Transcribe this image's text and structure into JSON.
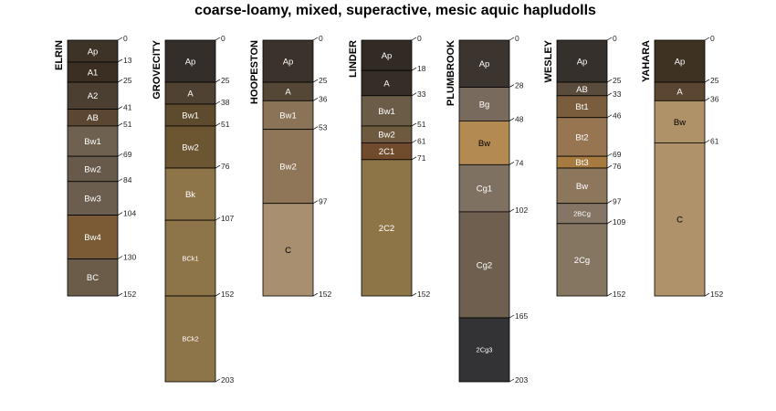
{
  "chart_data": {
    "type": "soil-profile",
    "title": "coarse-loamy, mixed, superactive, mesic aquic hapludolls",
    "depth_range": [
      0,
      203
    ],
    "profiles": [
      {
        "name": "ELRIN",
        "horizons": [
          {
            "name": "Ap",
            "top": 0,
            "bottom": 13,
            "color": "#3d3327",
            "text": "#ffffff"
          },
          {
            "name": "A1",
            "top": 13,
            "bottom": 25,
            "color": "#3a2f22",
            "text": "#ffffff"
          },
          {
            "name": "A2",
            "top": 25,
            "bottom": 41,
            "color": "#4b3f31",
            "text": "#ffffff"
          },
          {
            "name": "AB",
            "top": 41,
            "bottom": 51,
            "color": "#5a4631",
            "text": "#ffffff"
          },
          {
            "name": "Bw1",
            "top": 51,
            "bottom": 69,
            "color": "#6e6150",
            "text": "#ffffff"
          },
          {
            "name": "Bw2",
            "top": 69,
            "bottom": 84,
            "color": "#675a4b",
            "text": "#ffffff"
          },
          {
            "name": "Bw3",
            "top": 84,
            "bottom": 104,
            "color": "#6b5e4f",
            "text": "#ffffff"
          },
          {
            "name": "Bw4",
            "top": 104,
            "bottom": 130,
            "color": "#7a5b36",
            "text": "#ffffff"
          },
          {
            "name": "BC",
            "top": 130,
            "bottom": 152,
            "color": "#6b5c4a",
            "text": "#ffffff"
          }
        ],
        "depth_labels": [
          0,
          13,
          25,
          41,
          51,
          69,
          84,
          104,
          130,
          152
        ]
      },
      {
        "name": "GROVECITY",
        "horizons": [
          {
            "name": "Ap",
            "top": 0,
            "bottom": 25,
            "color": "#342e2a",
            "text": "#ffffff"
          },
          {
            "name": "A",
            "top": 25,
            "bottom": 38,
            "color": "#4f4232",
            "text": "#ffffff"
          },
          {
            "name": "Bw1",
            "top": 38,
            "bottom": 51,
            "color": "#5e4a2c",
            "text": "#ffffff"
          },
          {
            "name": "Bw2",
            "top": 51,
            "bottom": 76,
            "color": "#6c5631",
            "text": "#ffffff"
          },
          {
            "name": "Bk",
            "top": 76,
            "bottom": 107,
            "color": "#8e7449",
            "text": "#ffffff"
          },
          {
            "name": "BCk1",
            "top": 107,
            "bottom": 152,
            "color": "#8e7449",
            "text": "#ffffff"
          },
          {
            "name": "BCk2",
            "top": 152,
            "bottom": 203,
            "color": "#8e7449",
            "text": "#ffffff"
          }
        ],
        "depth_labels": [
          0,
          25,
          38,
          51,
          76,
          107,
          152,
          203
        ]
      },
      {
        "name": "HOOPESTON",
        "horizons": [
          {
            "name": "Ap",
            "top": 0,
            "bottom": 25,
            "color": "#3a322b",
            "text": "#ffffff"
          },
          {
            "name": "A",
            "top": 25,
            "bottom": 36,
            "color": "#554736",
            "text": "#ffffff"
          },
          {
            "name": "Bw1",
            "top": 36,
            "bottom": 53,
            "color": "#8a7356",
            "text": "#ffffff"
          },
          {
            "name": "Bw2",
            "top": 53,
            "bottom": 97,
            "color": "#8f7659",
            "text": "#ffffff"
          },
          {
            "name": "C",
            "top": 97,
            "bottom": 152,
            "color": "#a88f6f",
            "text": "#000000"
          }
        ],
        "depth_labels": [
          0,
          25,
          36,
          53,
          97,
          152
        ]
      },
      {
        "name": "LINDER",
        "horizons": [
          {
            "name": "Ap",
            "top": 0,
            "bottom": 18,
            "color": "#322b25",
            "text": "#ffffff"
          },
          {
            "name": "A",
            "top": 18,
            "bottom": 33,
            "color": "#352d26",
            "text": "#ffffff"
          },
          {
            "name": "Bw1",
            "top": 33,
            "bottom": 51,
            "color": "#6b5c48",
            "text": "#ffffff"
          },
          {
            "name": "Bw2",
            "top": 51,
            "bottom": 61,
            "color": "#6e5a3f",
            "text": "#ffffff"
          },
          {
            "name": "2C1",
            "top": 61,
            "bottom": 71,
            "color": "#704c2c",
            "text": "#ffffff"
          },
          {
            "name": "2C2",
            "top": 71,
            "bottom": 152,
            "color": "#8e7548",
            "text": "#ffffff"
          }
        ],
        "depth_labels": [
          0,
          18,
          33,
          51,
          61,
          71,
          152
        ]
      },
      {
        "name": "PLUMBROOK",
        "horizons": [
          {
            "name": "Ap",
            "top": 0,
            "bottom": 28,
            "color": "#3b342f",
            "text": "#ffffff"
          },
          {
            "name": "Bg",
            "top": 28,
            "bottom": 48,
            "color": "#786b5d",
            "text": "#ffffff"
          },
          {
            "name": "Bw",
            "top": 48,
            "bottom": 74,
            "color": "#b38b52",
            "text": "#000000"
          },
          {
            "name": "Cg1",
            "top": 74,
            "bottom": 102,
            "color": "#7f7161",
            "text": "#ffffff"
          },
          {
            "name": "Cg2",
            "top": 102,
            "bottom": 165,
            "color": "#6e5f4e",
            "text": "#ffffff"
          },
          {
            "name": "2Cg3",
            "top": 165,
            "bottom": 203,
            "color": "#333335",
            "text": "#ffffff"
          }
        ],
        "depth_labels": [
          0,
          28,
          48,
          74,
          102,
          165,
          203
        ]
      },
      {
        "name": "WESLEY",
        "horizons": [
          {
            "name": "Ap",
            "top": 0,
            "bottom": 25,
            "color": "#36302c",
            "text": "#ffffff"
          },
          {
            "name": "AB",
            "top": 25,
            "bottom": 33,
            "color": "#5a4c3c",
            "text": "#ffffff"
          },
          {
            "name": "Bt1",
            "top": 33,
            "bottom": 46,
            "color": "#7a5d3c",
            "text": "#ffffff"
          },
          {
            "name": "Bt2",
            "top": 46,
            "bottom": 69,
            "color": "#967550",
            "text": "#ffffff"
          },
          {
            "name": "Bt3",
            "top": 69,
            "bottom": 76,
            "color": "#a77b3f",
            "text": "#ffffff"
          },
          {
            "name": "Bw",
            "top": 76,
            "bottom": 97,
            "color": "#8d775c",
            "text": "#ffffff"
          },
          {
            "name": "2BCg",
            "top": 97,
            "bottom": 109,
            "color": "#857565",
            "text": "#ffffff"
          },
          {
            "name": "2Cg",
            "top": 109,
            "bottom": 152,
            "color": "#857662",
            "text": "#ffffff"
          }
        ],
        "depth_labels": [
          0,
          25,
          33,
          46,
          69,
          76,
          97,
          109,
          152
        ]
      },
      {
        "name": "YAHARA",
        "horizons": [
          {
            "name": "Ap",
            "top": 0,
            "bottom": 25,
            "color": "#3e3223",
            "text": "#ffffff"
          },
          {
            "name": "A",
            "top": 25,
            "bottom": 36,
            "color": "#5a4631",
            "text": "#ffffff"
          },
          {
            "name": "Bw",
            "top": 36,
            "bottom": 61,
            "color": "#b09268",
            "text": "#000000"
          },
          {
            "name": "C",
            "top": 61,
            "bottom": 152,
            "color": "#b0926a",
            "text": "#000000"
          }
        ],
        "depth_labels": [
          0,
          25,
          36,
          61,
          152
        ]
      }
    ]
  }
}
